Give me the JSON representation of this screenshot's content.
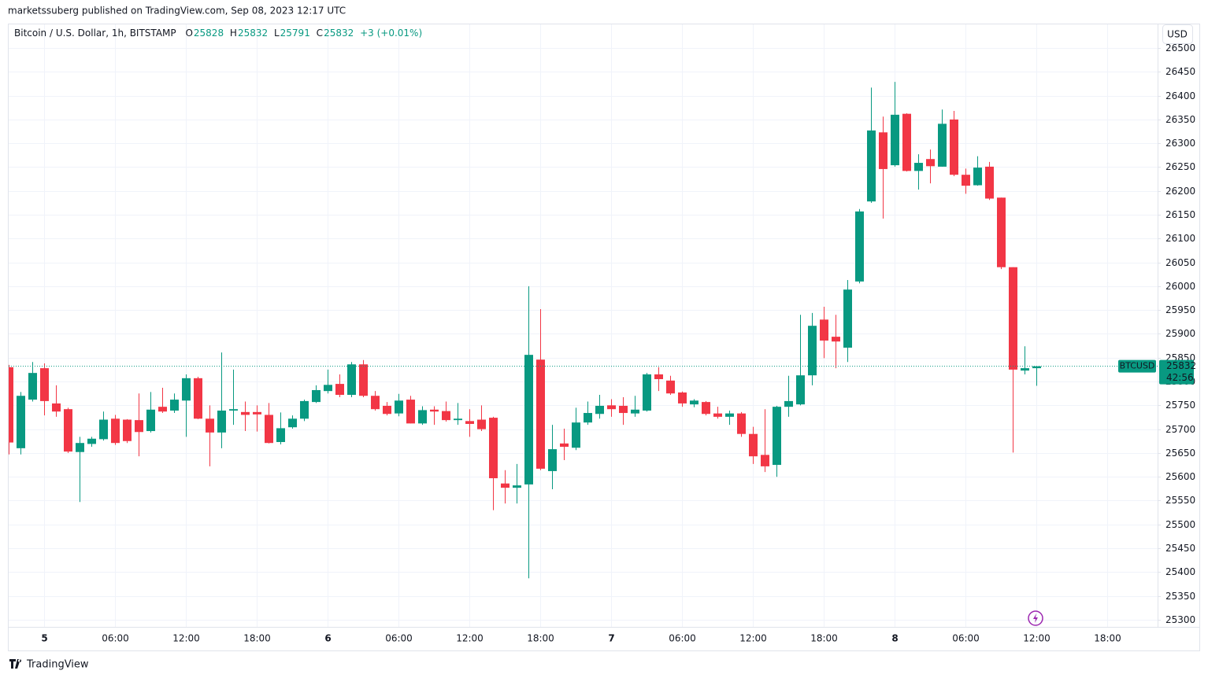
{
  "published": "marketssuberg published on TradingView.com, Sep 08, 2023 12:17 UTC",
  "brand": "TradingView",
  "currency": "USD",
  "chart_data": {
    "type": "candlestick",
    "title": "Bitcoin / U.S. Dollar, 1h, BITSTAMP",
    "ohlc_labels": [
      "O",
      "H",
      "L",
      "C"
    ],
    "change": "+3 (+0.01%)",
    "symbol": "BTCUSD",
    "countdown": "42:56",
    "up_color": "#089981",
    "down_color": "#f23645",
    "grid": true,
    "ylim": [
      25285,
      26548
    ],
    "yticks": [
      25300,
      25350,
      25400,
      25450,
      25500,
      25550,
      25600,
      25650,
      25700,
      25750,
      25800,
      25850,
      25900,
      25950,
      26000,
      26050,
      26100,
      26150,
      26200,
      26250,
      26300,
      26350,
      26400,
      26450,
      26500
    ],
    "categories": [
      null,
      null,
      null,
      "5",
      null,
      null,
      null,
      null,
      null,
      "06:00",
      null,
      null,
      null,
      null,
      null,
      "12:00",
      null,
      null,
      null,
      null,
      null,
      "18:00",
      null,
      null,
      null,
      null,
      null,
      "6",
      null,
      null,
      null,
      null,
      null,
      "06:00",
      null,
      null,
      null,
      null,
      null,
      "12:00",
      null,
      null,
      null,
      null,
      null,
      "18:00",
      null,
      null,
      null,
      null,
      null,
      "7",
      null,
      null,
      null,
      null,
      null,
      "06:00",
      null,
      null,
      null,
      null,
      null,
      "12:00",
      null,
      null,
      null,
      null,
      null,
      "18:00",
      null,
      null,
      null,
      null,
      null,
      "8",
      null,
      null,
      null,
      null,
      null,
      "06:00",
      null,
      null,
      null,
      null,
      null,
      "12:00",
      null,
      null,
      null,
      null,
      null,
      "18:00"
    ],
    "open": [
      25830,
      25660,
      25762,
      25828,
      25754,
      25742,
      25652,
      25669,
      25679,
      25722,
      25720,
      25719,
      25696,
      25747,
      25739,
      25760,
      25807,
      25722,
      25693,
      25739,
      25736,
      25736,
      25730,
      25673,
      25704,
      25722,
      25757,
      25780,
      25795,
      25772,
      25836,
      25770,
      25749,
      25733,
      25762,
      25712,
      25741,
      25738,
      25719,
      25717,
      25720,
      25724,
      25586,
      25577,
      25584,
      25846,
      25612,
      25670,
      25661,
      25714,
      25732,
      25750,
      25749,
      25733,
      25739,
      25815,
      25802,
      25777,
      25752,
      25757,
      25733,
      25726,
      25733,
      25690,
      25646,
      25625,
      25747,
      25752,
      25813,
      25930,
      25894,
      25871,
      26010,
      26178,
      26323,
      26254,
      26362,
      26242,
      26267,
      26251,
      26350,
      26234,
      26212,
      26251,
      26186,
      26040,
      25823,
      25828,
      null,
      null,
      null,
      null,
      null,
      null
    ],
    "high": [
      25835,
      25778,
      25841,
      25838,
      25792,
      25745,
      25684,
      25684,
      25737,
      25730,
      25721,
      25775,
      25778,
      25787,
      25775,
      25815,
      25810,
      25750,
      25861,
      25825,
      25758,
      25750,
      25755,
      25735,
      25729,
      25762,
      25792,
      25825,
      25815,
      25841,
      25845,
      25780,
      25757,
      25774,
      25770,
      25748,
      25748,
      25758,
      25755,
      25742,
      25750,
      25726,
      25614,
      25627,
      26000,
      25952,
      25709,
      25701,
      25745,
      25758,
      25772,
      25763,
      25767,
      25770,
      25818,
      25830,
      25812,
      25779,
      25763,
      25759,
      25747,
      25739,
      25736,
      25705,
      25742,
      25749,
      25812,
      25940,
      25944,
      25957,
      25940,
      26013,
      26162,
      26417,
      26356,
      26429,
      26363,
      26277,
      26287,
      26371,
      26368,
      26247,
      26273,
      26261,
      26186,
      26040,
      25874,
      25832,
      null,
      null,
      null,
      null,
      null,
      null
    ],
    "low": [
      25647,
      25647,
      25758,
      25729,
      25726,
      25650,
      25547,
      25663,
      25676,
      25667,
      25671,
      25643,
      25693,
      25734,
      25734,
      25684,
      25721,
      25622,
      25660,
      25709,
      25696,
      25695,
      25670,
      25668,
      25701,
      25717,
      25755,
      25775,
      25767,
      25767,
      25767,
      25739,
      25729,
      25727,
      25712,
      25709,
      25709,
      25716,
      25709,
      25684,
      25696,
      25530,
      25544,
      25544,
      25387,
      25614,
      25574,
      25635,
      25656,
      25709,
      25722,
      25726,
      25709,
      25726,
      25737,
      25780,
      25772,
      25747,
      25746,
      25729,
      25722,
      25709,
      25684,
      25627,
      25610,
      25600,
      25726,
      25750,
      25792,
      25849,
      25828,
      25841,
      26006,
      26175,
      26142,
      26251,
      26241,
      26203,
      26216,
      26251,
      26231,
      26194,
      26211,
      26181,
      26036,
      25651,
      25815,
      25791,
      null,
      null,
      null,
      null,
      null,
      null
    ],
    "close": [
      25672,
      25770,
      25818,
      25759,
      25737,
      25653,
      25671,
      25680,
      25720,
      25671,
      25675,
      25694,
      25741,
      25737,
      25762,
      25807,
      25722,
      25693,
      25739,
      25742,
      25730,
      25731,
      25671,
      25702,
      25722,
      25759,
      25782,
      25793,
      25772,
      25836,
      25770,
      25742,
      25732,
      25760,
      25712,
      25740,
      25737,
      25719,
      25722,
      25711,
      25700,
      25597,
      25577,
      25582,
      25856,
      25617,
      25658,
      25663,
      25714,
      25734,
      25749,
      25742,
      25734,
      25741,
      25815,
      25805,
      25775,
      25754,
      25760,
      25732,
      25726,
      25733,
      25690,
      25643,
      25622,
      25747,
      25759,
      25813,
      25917,
      25886,
      25884,
      25993,
      26157,
      26327,
      26246,
      26360,
      26242,
      26259,
      26252,
      26341,
      26234,
      26211,
      26249,
      26184,
      26040,
      25825,
      25828,
      25832,
      null,
      null,
      null,
      null,
      null,
      null
    ]
  }
}
